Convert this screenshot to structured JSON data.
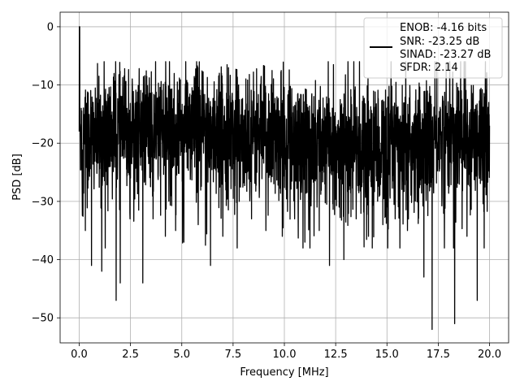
{
  "chart_data": {
    "type": "line",
    "title": "",
    "xlabel": "Frequency [MHz]",
    "ylabel": "PSD [dB]",
    "xlim": [
      -0.93,
      20.93
    ],
    "ylim": [
      -54.3,
      2.5
    ],
    "xticks": [
      0.0,
      2.5,
      5.0,
      7.5,
      10.0,
      12.5,
      15.0,
      17.5,
      20.0
    ],
    "xtick_labels": [
      "0.0",
      "2.5",
      "5.0",
      "7.5",
      "10.0",
      "12.5",
      "15.0",
      "17.5",
      "20.0"
    ],
    "yticks": [
      0,
      -10,
      -20,
      -30,
      -40,
      -50
    ],
    "ytick_labels": [
      "0",
      "−10",
      "−20",
      "−30",
      "−40",
      "−50"
    ],
    "grid": true,
    "legend_position": "top-right",
    "line_color": "#000000",
    "series": [
      {
        "color": "#000000",
        "description_points": {
          "x": [
            0.0,
            0.02,
            0.1,
            0.2,
            0.3,
            0.4,
            0.6,
            0.8,
            1.1,
            1.3,
            1.8,
            2.0,
            2.5,
            3.1,
            3.6,
            4.2,
            4.7,
            5.1,
            5.8,
            6.4,
            7.0,
            7.8,
            8.4,
            9.1,
            9.9,
            10.5,
            11.0,
            11.7,
            12.2,
            12.9,
            13.5,
            14.1,
            14.8,
            15.4,
            16.0,
            16.8,
            17.2,
            17.8,
            18.3,
            18.9,
            19.4,
            20.0
          ],
          "y": [
            -18,
            0,
            -14,
            -28,
            -35,
            -12,
            -41,
            -20,
            -42,
            -16,
            -47,
            -44,
            -26,
            -44,
            -33,
            -36,
            -35,
            -37,
            -34,
            -41,
            -36,
            -30,
            -33,
            -35,
            -36,
            -33,
            -37,
            -35,
            -41,
            -40,
            -33,
            -36,
            -34,
            -33,
            -35,
            -43,
            -52,
            -38,
            -51,
            -36,
            -47,
            -17
          ]
        }
      }
    ],
    "legend": {
      "lines": [
        "ENOB: -4.16 bits",
        "SNR: -23.25 dB",
        "SINAD: -23.27 dB",
        "SFDR: 2.14"
      ]
    }
  }
}
